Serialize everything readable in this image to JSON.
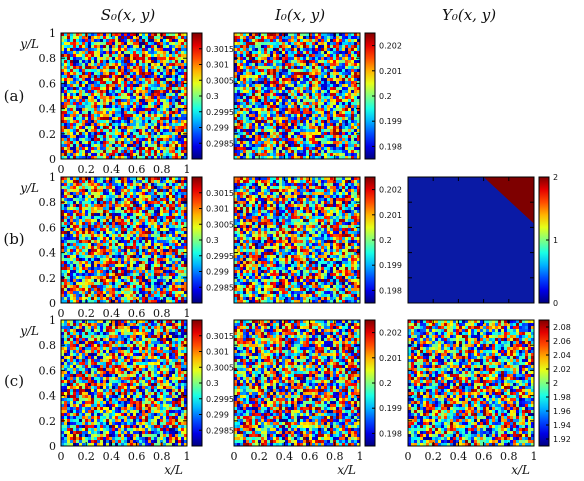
{
  "figure": {
    "column_titles": [
      "S₀(x, y)",
      "I₀(x, y)",
      "Y₀(x, y)"
    ],
    "row_labels": [
      "(a)",
      "(b)",
      "(c)"
    ],
    "xlabel": "x/L",
    "ylabel": "y/L"
  },
  "chart_data": [
    {
      "type": "heatmap",
      "row": "(a)",
      "title": "S₀(x, y)",
      "pattern": "uniform random noise",
      "xlim": [
        0,
        1
      ],
      "ylim": [
        0,
        1
      ],
      "xticks": [
        "0",
        "0.2",
        "0.4",
        "0.6",
        "0.8",
        "1"
      ],
      "yticks": [
        "0",
        "0.2",
        "0.4",
        "0.6",
        "0.8",
        "1"
      ],
      "colorbar": {
        "range": [
          0.298,
          0.302
        ],
        "ticks": [
          "0.3015",
          "0.301",
          "0.3005",
          "0.3",
          "0.2995",
          "0.299",
          "0.2985"
        ]
      }
    },
    {
      "type": "heatmap",
      "row": "(a)",
      "title": "I₀(x, y)",
      "pattern": "uniform random noise",
      "xlim": [
        0,
        1
      ],
      "ylim": [
        0,
        1
      ],
      "colorbar": {
        "range": [
          0.1975,
          0.2025
        ],
        "ticks": [
          "0.202",
          "0.201",
          "0.2",
          "0.199",
          "0.198"
        ]
      }
    },
    {
      "type": "heatmap",
      "row": "(b)",
      "title": "S₀(x, y)",
      "pattern": "uniform random noise",
      "xlim": [
        0,
        1
      ],
      "ylim": [
        0,
        1
      ],
      "xticks": [
        "0",
        "0.2",
        "0.4",
        "0.6",
        "0.8",
        "1"
      ],
      "yticks": [
        "0",
        "0.2",
        "0.4",
        "0.6",
        "0.8",
        "1"
      ],
      "colorbar": {
        "range": [
          0.298,
          0.302
        ],
        "ticks": [
          "0.3015",
          "0.301",
          "0.3005",
          "0.3",
          "0.2995",
          "0.299",
          "0.2985"
        ]
      }
    },
    {
      "type": "heatmap",
      "row": "(b)",
      "title": "I₀(x, y)",
      "pattern": "uniform random noise",
      "xlim": [
        0,
        1
      ],
      "ylim": [
        0,
        1
      ],
      "colorbar": {
        "range": [
          0.1975,
          0.2025
        ],
        "ticks": [
          "0.202",
          "0.201",
          "0.2",
          "0.199",
          "0.198"
        ]
      }
    },
    {
      "type": "heatmap",
      "row": "(b)",
      "title": "Y₀(x, y)",
      "pattern": "two regions",
      "regions": [
        {
          "value": 0,
          "area": "whole domain below the line",
          "color": "#0a1aa5"
        },
        {
          "value": 2,
          "area": "top-right corner above the line from (0.6, 1) to (1, 0.63)",
          "color": "#7e0000"
        }
      ],
      "xlim": [
        0,
        1
      ],
      "ylim": [
        0,
        1
      ],
      "colorbar": {
        "range": [
          0,
          2
        ],
        "ticks": [
          "2",
          "1",
          "0"
        ]
      }
    },
    {
      "type": "heatmap",
      "row": "(c)",
      "title": "S₀(x, y)",
      "pattern": "uniform random noise",
      "xlim": [
        0,
        1
      ],
      "ylim": [
        0,
        1
      ],
      "xticks": [
        "0",
        "0.2",
        "0.4",
        "0.6",
        "0.8",
        "1"
      ],
      "yticks": [
        "0",
        "0.2",
        "0.4",
        "0.6",
        "0.8",
        "1"
      ],
      "colorbar": {
        "range": [
          0.298,
          0.302
        ],
        "ticks": [
          "0.3015",
          "0.301",
          "0.3005",
          "0.3",
          "0.2995",
          "0.299",
          "0.2985"
        ]
      }
    },
    {
      "type": "heatmap",
      "row": "(c)",
      "title": "I₀(x, y)",
      "pattern": "uniform random noise",
      "xlim": [
        0,
        1
      ],
      "ylim": [
        0,
        1
      ],
      "xticks": [
        "0",
        "0.2",
        "0.4",
        "0.6",
        "0.8",
        "1"
      ],
      "colorbar": {
        "range": [
          0.1975,
          0.2025
        ],
        "ticks": [
          "0.202",
          "0.201",
          "0.2",
          "0.199",
          "0.198"
        ]
      }
    },
    {
      "type": "heatmap",
      "row": "(c)",
      "title": "Y₀(x, y)",
      "pattern": "uniform random noise",
      "xlim": [
        0,
        1
      ],
      "ylim": [
        0,
        1
      ],
      "xticks": [
        "0",
        "0.2",
        "0.4",
        "0.6",
        "0.8",
        "1"
      ],
      "colorbar": {
        "range": [
          1.91,
          2.09
        ],
        "ticks": [
          "2.08",
          "2.06",
          "2.04",
          "2.02",
          "2",
          "1.98",
          "1.96",
          "1.94",
          "1.92"
        ]
      }
    }
  ]
}
